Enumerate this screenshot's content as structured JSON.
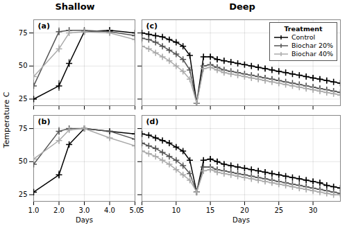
{
  "chart_data": [
    {
      "type": "line",
      "title": "Shallow",
      "annotations": [
        "(a)"
      ],
      "x": [
        1,
        2,
        2.4,
        3,
        4,
        5
      ],
      "series": [
        {
          "name": "Control",
          "color": "#000000",
          "marker": "plus",
          "values": [
            25,
            35,
            52,
            76,
            77,
            75
          ],
          "errors": [
            2,
            4,
            3,
            2,
            2,
            2
          ]
        },
        {
          "name": "Biochar 20%",
          "color": "#555555",
          "marker": "plus",
          "values": [
            35,
            76,
            77,
            77,
            76,
            73
          ],
          "errors": [
            2,
            3,
            2,
            2,
            2,
            2
          ]
        },
        {
          "name": "Biochar 40%",
          "color": "#aaaaaa",
          "marker": "plus",
          "values": [
            42,
            63,
            75,
            76,
            75,
            70
          ],
          "errors": [
            2,
            3,
            2,
            2,
            2,
            2
          ]
        }
      ],
      "xlim": [
        1,
        5
      ],
      "xticks": [
        1,
        2,
        3,
        4,
        5
      ],
      "ylim": [
        20,
        85
      ],
      "yticks": [
        25,
        50,
        75
      ],
      "ylabel": "Temperature C",
      "grid": true,
      "tick_labels": "y"
    },
    {
      "type": "line",
      "annotations": [
        "(b)"
      ],
      "x": [
        1,
        2,
        2.4,
        3,
        4,
        5
      ],
      "series": [
        {
          "name": "Control",
          "color": "#000000",
          "marker": "plus",
          "values": [
            27,
            40,
            63,
            75,
            73,
            71
          ],
          "errors": [
            2,
            3,
            2,
            2,
            2,
            2
          ]
        },
        {
          "name": "Biochar 20%",
          "color": "#555555",
          "marker": "plus",
          "values": [
            48,
            73,
            75,
            75,
            73,
            67
          ],
          "errors": [
            2,
            3,
            2,
            2,
            2,
            2
          ]
        },
        {
          "name": "Biochar 40%",
          "color": "#aaaaaa",
          "marker": "plus",
          "values": [
            52,
            66,
            74,
            75,
            68,
            62
          ],
          "errors": [
            2,
            3,
            2,
            2,
            2,
            2
          ]
        }
      ],
      "xlim": [
        1,
        5
      ],
      "xticks": [
        1,
        2,
        3,
        4,
        5
      ],
      "ylim": [
        20,
        85
      ],
      "yticks": [
        25,
        50,
        75
      ],
      "xlabel": "Days",
      "grid": true
    },
    {
      "type": "line",
      "title": "Deep",
      "annotations": [
        "(c)"
      ],
      "x": [
        5,
        6,
        7,
        8,
        9,
        10,
        11,
        12,
        13,
        14,
        15,
        16,
        17,
        18,
        19,
        20,
        21,
        22,
        23,
        24,
        25,
        26,
        27,
        28,
        29,
        30,
        31,
        32,
        33,
        34
      ],
      "series": [
        {
          "name": "Control",
          "color": "#000000",
          "marker": "plus",
          "values": [
            75,
            74,
            73,
            72,
            70,
            68,
            65,
            58,
            22,
            57,
            57,
            55,
            54,
            53,
            52,
            51,
            50,
            49,
            48,
            47,
            46,
            45,
            44,
            43,
            42,
            41,
            40,
            39,
            38,
            37
          ],
          "errors": [
            1,
            1,
            1,
            1,
            1,
            1,
            1,
            1,
            1,
            2,
            2,
            2,
            2,
            2,
            2,
            2,
            2,
            2,
            2,
            2,
            2,
            2,
            2,
            2,
            2,
            2,
            2,
            2,
            2,
            2
          ]
        },
        {
          "name": "Biochar 20%",
          "color": "#555555",
          "marker": "plus",
          "values": [
            71,
            70,
            68,
            65,
            62,
            59,
            55,
            47,
            22,
            50,
            51,
            49,
            47,
            46,
            45,
            44,
            43,
            42,
            41,
            40,
            39,
            38,
            37,
            36,
            35,
            34,
            33,
            32,
            31,
            30
          ],
          "errors": [
            1,
            1,
            1,
            1,
            1,
            1,
            1,
            1,
            1,
            2,
            2,
            2,
            2,
            2,
            2,
            2,
            2,
            2,
            2,
            2,
            2,
            2,
            2,
            2,
            2,
            2,
            2,
            2,
            2,
            2
          ]
        },
        {
          "name": "Biochar 40%",
          "color": "#aaaaaa",
          "marker": "plus",
          "values": [
            65,
            63,
            60,
            57,
            54,
            50,
            46,
            40,
            22,
            48,
            49,
            47,
            45,
            44,
            43,
            42,
            41,
            40,
            39,
            38,
            37,
            36,
            35,
            34,
            33,
            32,
            31,
            30,
            29,
            28
          ],
          "errors": [
            1,
            1,
            1,
            1,
            1,
            1,
            1,
            1,
            1,
            2,
            2,
            2,
            2,
            2,
            2,
            2,
            2,
            2,
            2,
            2,
            2,
            2,
            2,
            2,
            2,
            2,
            2,
            2,
            2,
            2
          ]
        }
      ],
      "xlim": [
        5,
        34
      ],
      "xticks": [
        5,
        10,
        15,
        20,
        25,
        30
      ],
      "ylim": [
        20,
        85
      ],
      "yticks": [
        25,
        50,
        75
      ],
      "grid": true,
      "tick_labels": false,
      "legend": "upper right",
      "legend_title": "Treatment"
    },
    {
      "type": "line",
      "annotations": [
        "(d)"
      ],
      "x": [
        5,
        6,
        7,
        8,
        9,
        10,
        11,
        12,
        13,
        14,
        15,
        16,
        17,
        18,
        19,
        20,
        21,
        22,
        23,
        24,
        25,
        26,
        27,
        28,
        29,
        30,
        31,
        32,
        33,
        34
      ],
      "series": [
        {
          "name": "Control",
          "color": "#000000",
          "marker": "plus",
          "values": [
            71,
            70,
            68,
            66,
            64,
            61,
            58,
            51,
            27,
            51,
            52,
            50,
            48,
            47,
            46,
            45,
            44,
            43,
            42,
            41,
            40,
            39,
            38,
            37,
            36,
            35,
            34,
            32,
            31,
            30
          ],
          "errors": [
            1,
            1,
            1,
            1,
            1,
            1,
            1,
            1,
            1,
            2,
            2,
            2,
            2,
            2,
            2,
            2,
            2,
            2,
            2,
            2,
            2,
            2,
            2,
            2,
            2,
            2,
            2,
            2,
            2,
            2
          ]
        },
        {
          "name": "Biochar 20%",
          "color": "#555555",
          "marker": "plus",
          "values": [
            64,
            62,
            60,
            57,
            54,
            51,
            47,
            41,
            27,
            46,
            46,
            44,
            43,
            42,
            41,
            40,
            39,
            38,
            37,
            36,
            35,
            34,
            33,
            32,
            31,
            30,
            29,
            28,
            27,
            26
          ],
          "errors": [
            1,
            1,
            1,
            1,
            1,
            1,
            1,
            1,
            1,
            2,
            2,
            2,
            2,
            2,
            2,
            2,
            2,
            2,
            2,
            2,
            2,
            2,
            2,
            2,
            2,
            2,
            2,
            2,
            2,
            2
          ]
        },
        {
          "name": "Biochar 40%",
          "color": "#aaaaaa",
          "marker": "plus",
          "values": [
            58,
            56,
            54,
            51,
            48,
            44,
            40,
            36,
            27,
            43,
            44,
            42,
            41,
            40,
            39,
            38,
            37,
            36,
            35,
            34,
            33,
            32,
            31,
            30,
            29,
            28,
            27,
            26,
            25,
            25
          ],
          "errors": [
            1,
            1,
            1,
            1,
            1,
            1,
            1,
            1,
            1,
            2,
            2,
            2,
            2,
            2,
            2,
            2,
            2,
            2,
            2,
            2,
            2,
            2,
            2,
            2,
            2,
            2,
            2,
            2,
            2,
            2
          ]
        }
      ],
      "xlim": [
        5,
        34
      ],
      "xticks": [
        5,
        10,
        15,
        20,
        25,
        30
      ],
      "ylim": [
        20,
        85
      ],
      "yticks": [
        25,
        50,
        75
      ],
      "xlabel": "Days",
      "grid": true,
      "tick_labels": "x"
    }
  ]
}
